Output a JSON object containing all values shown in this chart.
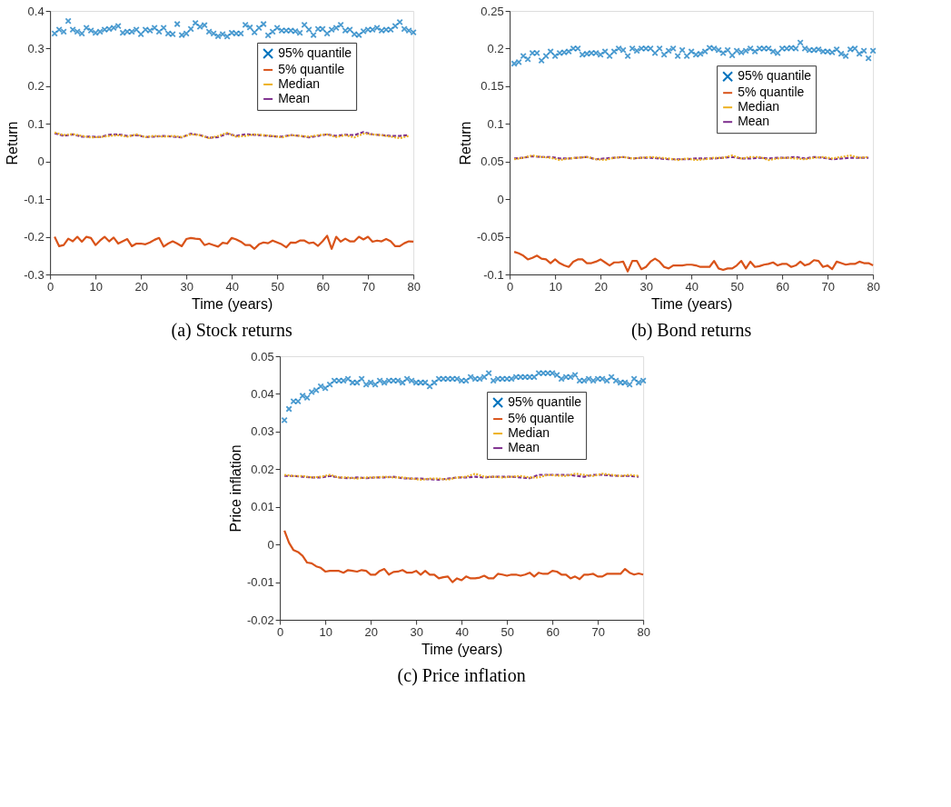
{
  "chart_data": [
    {
      "type": "line",
      "title": "(a) Stock returns",
      "xlabel": "Time (years)",
      "ylabel": "Return",
      "xlim": [
        0,
        80
      ],
      "xticks": [
        0,
        10,
        20,
        30,
        40,
        50,
        60,
        70,
        80
      ],
      "ylim": [
        -0.3,
        0.4
      ],
      "yticks": [
        -0.3,
        -0.2,
        -0.1,
        0,
        0.1,
        0.2,
        0.3,
        0.4
      ],
      "grid": false,
      "legend": "top right",
      "x": [
        1,
        2,
        3,
        4,
        5,
        6,
        7,
        8,
        9,
        10,
        11,
        12,
        13,
        14,
        15,
        16,
        17,
        18,
        19,
        20,
        21,
        22,
        23,
        24,
        25,
        26,
        27,
        28,
        29,
        30,
        31,
        32,
        33,
        34,
        35,
        36,
        37,
        38,
        39,
        40,
        41,
        42,
        43,
        44,
        45,
        46,
        47,
        48,
        49,
        50,
        51,
        52,
        53,
        54,
        55,
        56,
        57,
        58,
        59,
        60,
        61,
        62,
        63,
        64,
        65,
        66,
        67,
        68,
        69,
        70,
        71,
        72,
        73,
        74,
        75,
        76,
        77,
        78,
        79,
        80
      ],
      "series": [
        {
          "name": "95% quantile",
          "type": "scatter",
          "marker": "cross",
          "color": "#0072bd",
          "values": [
            0.34,
            0.35,
            0.345,
            0.373,
            0.35,
            0.345,
            0.34,
            0.355,
            0.348,
            0.342,
            0.345,
            0.35,
            0.352,
            0.355,
            0.36,
            0.342,
            0.345,
            0.345,
            0.35,
            0.338,
            0.35,
            0.348,
            0.355,
            0.345,
            0.355,
            0.34,
            0.338,
            0.365,
            0.336,
            0.34,
            0.352,
            0.368,
            0.358,
            0.362,
            0.345,
            0.34,
            0.333,
            0.338,
            0.332,
            0.342,
            0.34,
            0.34,
            0.363,
            0.356,
            0.343,
            0.355,
            0.365,
            0.335,
            0.345,
            0.355,
            0.348,
            0.348,
            0.348,
            0.346,
            0.342,
            0.363,
            0.35,
            0.336,
            0.352,
            0.352,
            0.34,
            0.35,
            0.355,
            0.363,
            0.348,
            0.35,
            0.338,
            0.336,
            0.346,
            0.35,
            0.35,
            0.355,
            0.348,
            0.35,
            0.35,
            0.36,
            0.37,
            0.352,
            0.348,
            0.343
          ]
        },
        {
          "name": "5% quantile",
          "type": "line",
          "line_style": "solid",
          "color": "#d95319",
          "values": [
            -0.2,
            -0.225,
            -0.222,
            -0.205,
            -0.212,
            -0.2,
            -0.213,
            -0.2,
            -0.203,
            -0.222,
            -0.21,
            -0.2,
            -0.212,
            -0.202,
            -0.218,
            -0.212,
            -0.206,
            -0.225,
            -0.218,
            -0.218,
            -0.22,
            -0.215,
            -0.208,
            -0.203,
            -0.226,
            -0.218,
            -0.212,
            -0.218,
            -0.225,
            -0.206,
            -0.203,
            -0.205,
            -0.206,
            -0.222,
            -0.218,
            -0.222,
            -0.226,
            -0.216,
            -0.218,
            -0.203,
            -0.207,
            -0.213,
            -0.222,
            -0.222,
            -0.232,
            -0.22,
            -0.215,
            -0.217,
            -0.21,
            -0.215,
            -0.22,
            -0.228,
            -0.215,
            -0.216,
            -0.21,
            -0.21,
            -0.217,
            -0.215,
            -0.224,
            -0.212,
            -0.197,
            -0.232,
            -0.2,
            -0.213,
            -0.205,
            -0.212,
            -0.212,
            -0.2,
            -0.207,
            -0.2,
            -0.213,
            -0.21,
            -0.212,
            -0.206,
            -0.212,
            -0.225,
            -0.225,
            -0.217,
            -0.212,
            -0.213
          ]
        },
        {
          "name": "Median",
          "type": "line",
          "line_style": "dotted",
          "color": "#edb120",
          "x": [
            1,
            3,
            5,
            7,
            9,
            11,
            13,
            15,
            17,
            19,
            21,
            23,
            25,
            27,
            29,
            31,
            33,
            35,
            37,
            39,
            41,
            43,
            45,
            47,
            49,
            51,
            53,
            55,
            57,
            59,
            61,
            63,
            65,
            67,
            69,
            71,
            73,
            75,
            77,
            79
          ],
          "values": [
            0.077,
            0.07,
            0.073,
            0.068,
            0.064,
            0.065,
            0.068,
            0.07,
            0.066,
            0.072,
            0.065,
            0.068,
            0.066,
            0.068,
            0.065,
            0.072,
            0.07,
            0.062,
            0.068,
            0.076,
            0.066,
            0.068,
            0.072,
            0.07,
            0.068,
            0.064,
            0.07,
            0.068,
            0.066,
            0.07,
            0.072,
            0.065,
            0.07,
            0.064,
            0.074,
            0.072,
            0.07,
            0.066,
            0.062,
            0.068
          ]
        },
        {
          "name": "Mean",
          "type": "line",
          "line_style": "dashed",
          "color": "#7e2f8e",
          "x": [
            1,
            3,
            5,
            7,
            9,
            11,
            13,
            15,
            17,
            19,
            21,
            23,
            25,
            27,
            29,
            31,
            33,
            35,
            37,
            39,
            41,
            43,
            45,
            47,
            49,
            51,
            53,
            55,
            57,
            59,
            61,
            63,
            65,
            67,
            69,
            71,
            73,
            75,
            77,
            79
          ],
          "values": [
            0.075,
            0.068,
            0.072,
            0.066,
            0.066,
            0.065,
            0.071,
            0.072,
            0.068,
            0.07,
            0.065,
            0.066,
            0.068,
            0.066,
            0.064,
            0.074,
            0.07,
            0.063,
            0.065,
            0.074,
            0.068,
            0.072,
            0.071,
            0.069,
            0.067,
            0.066,
            0.07,
            0.068,
            0.064,
            0.068,
            0.072,
            0.068,
            0.071,
            0.07,
            0.078,
            0.072,
            0.07,
            0.068,
            0.068,
            0.07
          ]
        }
      ]
    },
    {
      "type": "line",
      "title": "(b) Bond returns",
      "xlabel": "Time (years)",
      "ylabel": "Return",
      "xlim": [
        0,
        80
      ],
      "xticks": [
        0,
        10,
        20,
        30,
        40,
        50,
        60,
        70,
        80
      ],
      "ylim": [
        -0.1,
        0.25
      ],
      "yticks": [
        -0.1,
        -0.05,
        0,
        0.05,
        0.1,
        0.15,
        0.2,
        0.25
      ],
      "grid": false,
      "legend": "top right",
      "x": [
        1,
        2,
        3,
        4,
        5,
        6,
        7,
        8,
        9,
        10,
        11,
        12,
        13,
        14,
        15,
        16,
        17,
        18,
        19,
        20,
        21,
        22,
        23,
        24,
        25,
        26,
        27,
        28,
        29,
        30,
        31,
        32,
        33,
        34,
        35,
        36,
        37,
        38,
        39,
        40,
        41,
        42,
        43,
        44,
        45,
        46,
        47,
        48,
        49,
        50,
        51,
        52,
        53,
        54,
        55,
        56,
        57,
        58,
        59,
        60,
        61,
        62,
        63,
        64,
        65,
        66,
        67,
        68,
        69,
        70,
        71,
        72,
        73,
        74,
        75,
        76,
        77,
        78,
        79,
        80
      ],
      "series": [
        {
          "name": "95% quantile",
          "type": "scatter",
          "marker": "cross",
          "color": "#0072bd",
          "values": [
            0.18,
            0.182,
            0.19,
            0.186,
            0.194,
            0.194,
            0.184,
            0.19,
            0.196,
            0.19,
            0.194,
            0.195,
            0.196,
            0.2,
            0.2,
            0.192,
            0.193,
            0.194,
            0.194,
            0.192,
            0.196,
            0.19,
            0.196,
            0.2,
            0.198,
            0.19,
            0.2,
            0.197,
            0.2,
            0.2,
            0.2,
            0.194,
            0.2,
            0.192,
            0.197,
            0.2,
            0.19,
            0.198,
            0.19,
            0.196,
            0.192,
            0.193,
            0.196,
            0.201,
            0.2,
            0.198,
            0.194,
            0.198,
            0.191,
            0.197,
            0.195,
            0.197,
            0.2,
            0.196,
            0.2,
            0.2,
            0.2,
            0.196,
            0.194,
            0.2,
            0.2,
            0.201,
            0.2,
            0.208,
            0.2,
            0.198,
            0.198,
            0.199,
            0.196,
            0.196,
            0.195,
            0.199,
            0.193,
            0.19,
            0.199,
            0.2,
            0.193,
            0.197,
            0.187,
            0.197
          ]
        },
        {
          "name": "5% quantile",
          "type": "line",
          "line_style": "solid",
          "color": "#d95319",
          "values": [
            -0.07,
            -0.072,
            -0.075,
            -0.08,
            -0.078,
            -0.075,
            -0.079,
            -0.08,
            -0.085,
            -0.08,
            -0.085,
            -0.088,
            -0.09,
            -0.083,
            -0.08,
            -0.08,
            -0.085,
            -0.085,
            -0.083,
            -0.08,
            -0.084,
            -0.088,
            -0.084,
            -0.084,
            -0.083,
            -0.096,
            -0.082,
            -0.082,
            -0.093,
            -0.09,
            -0.083,
            -0.079,
            -0.083,
            -0.09,
            -0.092,
            -0.088,
            -0.088,
            -0.088,
            -0.087,
            -0.087,
            -0.088,
            -0.09,
            -0.09,
            -0.09,
            -0.082,
            -0.092,
            -0.094,
            -0.092,
            -0.092,
            -0.088,
            -0.082,
            -0.092,
            -0.083,
            -0.09,
            -0.089,
            -0.087,
            -0.086,
            -0.084,
            -0.088,
            -0.086,
            -0.086,
            -0.09,
            -0.088,
            -0.083,
            -0.088,
            -0.086,
            -0.081,
            -0.082,
            -0.09,
            -0.088,
            -0.093,
            -0.083,
            -0.085,
            -0.087,
            -0.086,
            -0.086,
            -0.083,
            -0.085,
            -0.085,
            -0.088
          ]
        },
        {
          "name": "Median",
          "type": "line",
          "line_style": "dotted",
          "color": "#edb120",
          "x": [
            1,
            3,
            5,
            7,
            9,
            11,
            13,
            15,
            17,
            19,
            21,
            23,
            25,
            27,
            29,
            31,
            33,
            35,
            37,
            39,
            41,
            43,
            45,
            47,
            49,
            51,
            53,
            55,
            57,
            59,
            61,
            63,
            65,
            67,
            69,
            71,
            73,
            75,
            77,
            79
          ],
          "values": [
            0.053,
            0.055,
            0.058,
            0.056,
            0.055,
            0.052,
            0.054,
            0.055,
            0.056,
            0.053,
            0.052,
            0.055,
            0.056,
            0.054,
            0.055,
            0.056,
            0.055,
            0.054,
            0.052,
            0.054,
            0.052,
            0.053,
            0.055,
            0.055,
            0.058,
            0.054,
            0.056,
            0.056,
            0.052,
            0.054,
            0.055,
            0.054,
            0.053,
            0.055,
            0.056,
            0.054,
            0.056,
            0.058,
            0.055,
            0.056
          ]
        },
        {
          "name": "Mean",
          "type": "line",
          "line_style": "dashed",
          "color": "#7e2f8e",
          "x": [
            1,
            3,
            5,
            7,
            9,
            11,
            13,
            15,
            17,
            19,
            21,
            23,
            25,
            27,
            29,
            31,
            33,
            35,
            37,
            39,
            41,
            43,
            45,
            47,
            49,
            51,
            53,
            55,
            57,
            59,
            61,
            63,
            65,
            67,
            69,
            71,
            73,
            75,
            77,
            79
          ],
          "values": [
            0.054,
            0.055,
            0.057,
            0.056,
            0.056,
            0.054,
            0.054,
            0.055,
            0.056,
            0.053,
            0.054,
            0.055,
            0.056,
            0.054,
            0.055,
            0.055,
            0.054,
            0.053,
            0.053,
            0.053,
            0.054,
            0.054,
            0.054,
            0.055,
            0.056,
            0.054,
            0.054,
            0.055,
            0.054,
            0.055,
            0.055,
            0.056,
            0.054,
            0.056,
            0.055,
            0.053,
            0.054,
            0.055,
            0.055,
            0.055
          ]
        }
      ]
    },
    {
      "type": "line",
      "title": "(c) Price inflation",
      "xlabel": "Time (years)",
      "ylabel": "Price inflation",
      "xlim": [
        0,
        80
      ],
      "xticks": [
        0,
        10,
        20,
        30,
        40,
        50,
        60,
        70,
        80
      ],
      "ylim": [
        -0.02,
        0.05
      ],
      "yticks": [
        -0.02,
        -0.01,
        0,
        0.01,
        0.02,
        0.03,
        0.04,
        0.05
      ],
      "grid": false,
      "legend": "top right",
      "x": [
        1,
        2,
        3,
        4,
        5,
        6,
        7,
        8,
        9,
        10,
        11,
        12,
        13,
        14,
        15,
        16,
        17,
        18,
        19,
        20,
        21,
        22,
        23,
        24,
        25,
        26,
        27,
        28,
        29,
        30,
        31,
        32,
        33,
        34,
        35,
        36,
        37,
        38,
        39,
        40,
        41,
        42,
        43,
        44,
        45,
        46,
        47,
        48,
        49,
        50,
        51,
        52,
        53,
        54,
        55,
        56,
        57,
        58,
        59,
        60,
        61,
        62,
        63,
        64,
        65,
        66,
        67,
        68,
        69,
        70,
        71,
        72,
        73,
        74,
        75,
        76,
        77,
        78,
        79,
        80
      ],
      "series": [
        {
          "name": "95% quantile",
          "type": "scatter",
          "marker": "cross",
          "color": "#0072bd",
          "values": [
            0.033,
            0.036,
            0.038,
            0.038,
            0.0395,
            0.039,
            0.0405,
            0.041,
            0.042,
            0.0415,
            0.0425,
            0.0435,
            0.0435,
            0.0435,
            0.044,
            0.043,
            0.043,
            0.044,
            0.0425,
            0.043,
            0.0425,
            0.0435,
            0.043,
            0.0435,
            0.0435,
            0.0435,
            0.043,
            0.044,
            0.0435,
            0.043,
            0.043,
            0.043,
            0.042,
            0.043,
            0.044,
            0.044,
            0.044,
            0.044,
            0.044,
            0.0435,
            0.0435,
            0.0445,
            0.044,
            0.044,
            0.0445,
            0.0455,
            0.0435,
            0.044,
            0.044,
            0.044,
            0.044,
            0.0445,
            0.0445,
            0.0445,
            0.0445,
            0.0445,
            0.0455,
            0.0455,
            0.0455,
            0.0455,
            0.045,
            0.044,
            0.0445,
            0.0445,
            0.045,
            0.0435,
            0.0435,
            0.044,
            0.0435,
            0.044,
            0.044,
            0.0435,
            0.0445,
            0.0435,
            0.043,
            0.043,
            0.0425,
            0.044,
            0.043,
            0.0435
          ]
        },
        {
          "name": "5% quantile",
          "type": "line",
          "line_style": "solid",
          "color": "#d95319",
          "values": [
            0.0037,
            0.0005,
            -0.0015,
            -0.002,
            -0.003,
            -0.0048,
            -0.005,
            -0.0058,
            -0.0062,
            -0.0072,
            -0.007,
            -0.007,
            -0.007,
            -0.0075,
            -0.0068,
            -0.007,
            -0.0072,
            -0.0068,
            -0.007,
            -0.008,
            -0.008,
            -0.007,
            -0.0065,
            -0.008,
            -0.0073,
            -0.0072,
            -0.0068,
            -0.0075,
            -0.0075,
            -0.007,
            -0.008,
            -0.007,
            -0.008,
            -0.008,
            -0.009,
            -0.0087,
            -0.0085,
            -0.01,
            -0.009,
            -0.0095,
            -0.0085,
            -0.009,
            -0.009,
            -0.0088,
            -0.0083,
            -0.009,
            -0.009,
            -0.0078,
            -0.008,
            -0.0083,
            -0.008,
            -0.008,
            -0.0083,
            -0.008,
            -0.0075,
            -0.0085,
            -0.0075,
            -0.0078,
            -0.0078,
            -0.007,
            -0.0072,
            -0.008,
            -0.008,
            -0.009,
            -0.0085,
            -0.0092,
            -0.008,
            -0.008,
            -0.0078,
            -0.0085,
            -0.0085,
            -0.0078,
            -0.0078,
            -0.0078,
            -0.0078,
            -0.0065,
            -0.0075,
            -0.008,
            -0.0077,
            -0.008
          ]
        },
        {
          "name": "Median",
          "type": "line",
          "line_style": "dotted",
          "color": "#edb120",
          "x": [
            1,
            3,
            5,
            7,
            9,
            11,
            13,
            15,
            17,
            19,
            21,
            23,
            25,
            27,
            29,
            31,
            33,
            35,
            37,
            39,
            41,
            43,
            45,
            47,
            49,
            51,
            53,
            55,
            57,
            59,
            61,
            63,
            65,
            67,
            69,
            71,
            73,
            75,
            77,
            79
          ],
          "values": [
            0.0185,
            0.0182,
            0.0182,
            0.0178,
            0.018,
            0.0185,
            0.0178,
            0.0178,
            0.0175,
            0.0178,
            0.0178,
            0.018,
            0.0178,
            0.0178,
            0.0175,
            0.0172,
            0.0175,
            0.0175,
            0.0172,
            0.0178,
            0.018,
            0.0188,
            0.018,
            0.018,
            0.0178,
            0.018,
            0.0182,
            0.0178,
            0.0178,
            0.0185,
            0.0183,
            0.0182,
            0.0188,
            0.0185,
            0.0182,
            0.0188,
            0.0185,
            0.0182,
            0.0185,
            0.0182
          ]
        },
        {
          "name": "Mean",
          "type": "line",
          "line_style": "dashed",
          "color": "#7e2f8e",
          "x": [
            1,
            3,
            5,
            7,
            9,
            11,
            13,
            15,
            17,
            19,
            21,
            23,
            25,
            27,
            29,
            31,
            33,
            35,
            37,
            39,
            41,
            43,
            45,
            47,
            49,
            51,
            53,
            55,
            57,
            59,
            61,
            63,
            65,
            67,
            69,
            71,
            73,
            75,
            77,
            79
          ],
          "values": [
            0.0182,
            0.0182,
            0.018,
            0.0178,
            0.0178,
            0.0182,
            0.0178,
            0.0176,
            0.0178,
            0.0176,
            0.0178,
            0.0178,
            0.018,
            0.0176,
            0.0175,
            0.0175,
            0.0173,
            0.0172,
            0.0175,
            0.0178,
            0.0178,
            0.018,
            0.0178,
            0.018,
            0.018,
            0.018,
            0.0178,
            0.0176,
            0.0185,
            0.0185,
            0.0185,
            0.0185,
            0.0183,
            0.018,
            0.0185,
            0.0185,
            0.0183,
            0.0182,
            0.0182,
            0.018
          ]
        }
      ]
    }
  ]
}
